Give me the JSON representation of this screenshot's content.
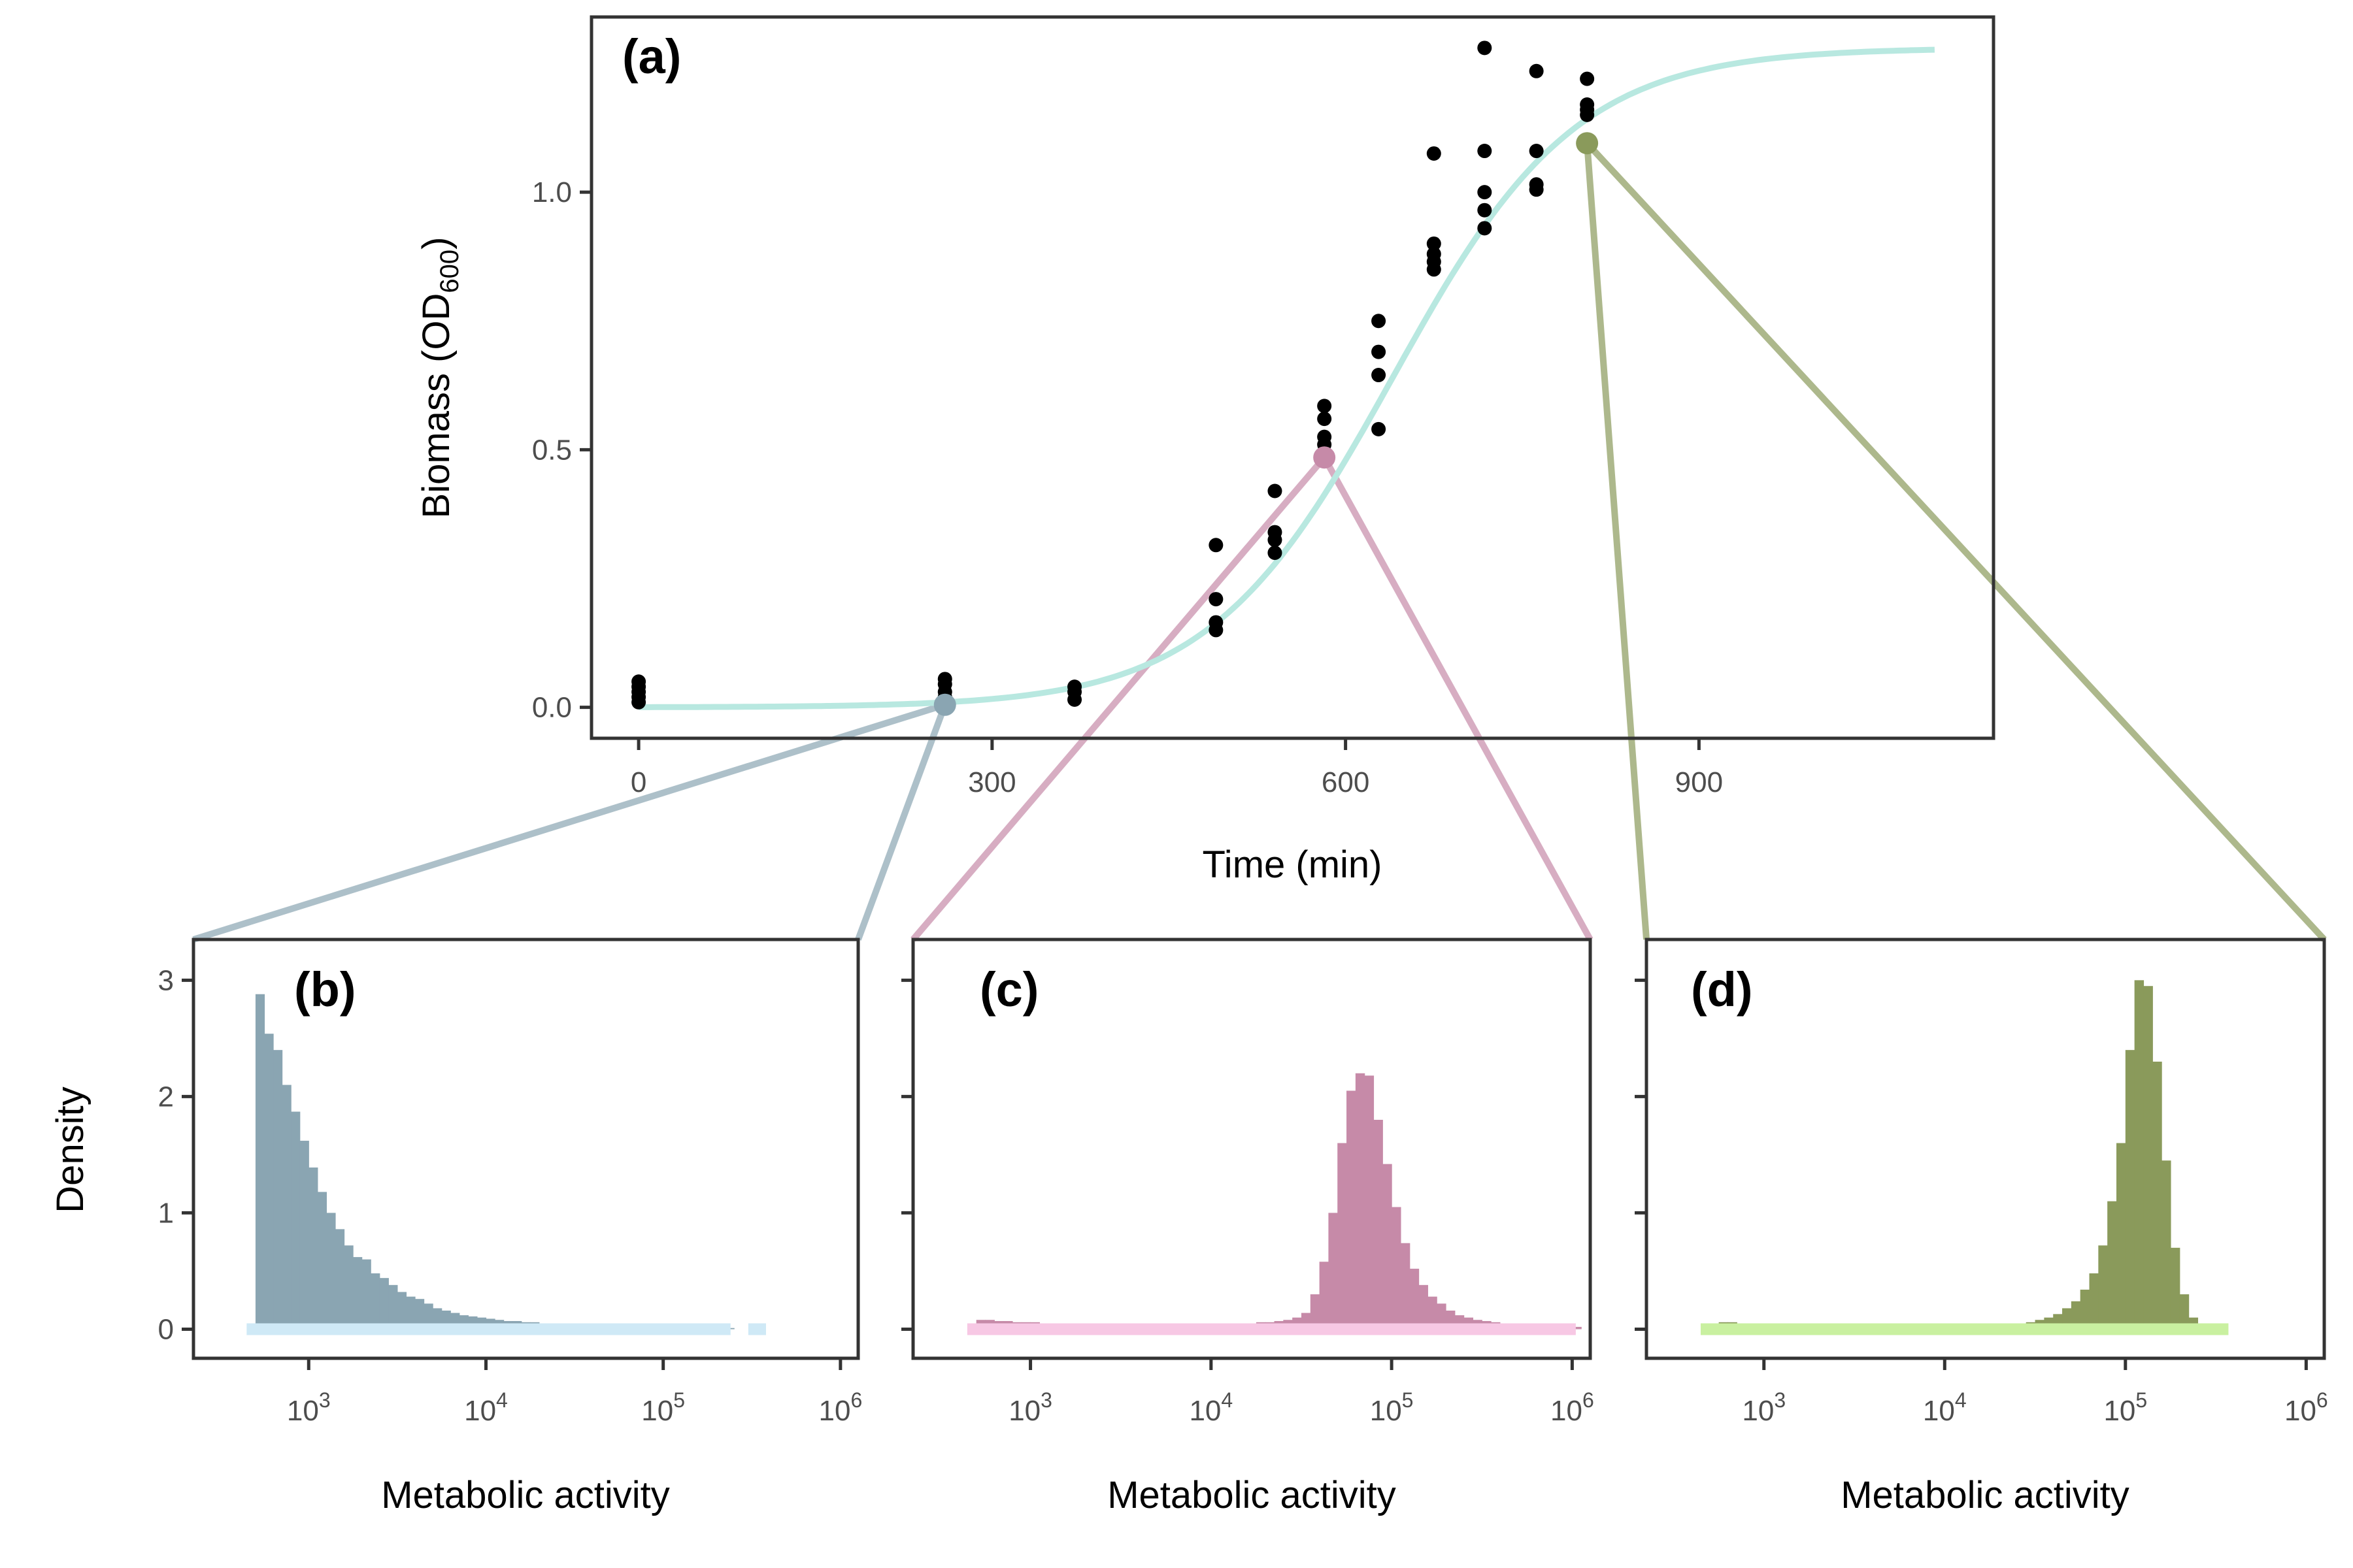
{
  "chart_data": [
    {
      "type": "scatter",
      "panel_label": "(a)",
      "xlabel": "Time (min)",
      "ylabel": "Biomass (OD",
      "ylabel_sub": "600",
      "ylabel_end": ")",
      "xlim": [
        -40,
        1150
      ],
      "ylim": [
        -0.06,
        1.34
      ],
      "xticks": [
        0,
        300,
        600,
        900
      ],
      "xtick_labels": [
        "0",
        "300",
        "600",
        "900"
      ],
      "yticks": [
        0.0,
        0.5,
        1.0
      ],
      "ytick_labels": [
        "0.0",
        "0.5",
        "1.0"
      ],
      "grid": false,
      "curve_color": "#b8e8e0",
      "curve": {
        "K": 1.28,
        "r": 0.0128,
        "t0": 640,
        "x_range": [
          0,
          1100
        ]
      },
      "points": [
        [
          0,
          0.01
        ],
        [
          0,
          0.02
        ],
        [
          0,
          0.03
        ],
        [
          0,
          0.04
        ],
        [
          0,
          0.05
        ],
        [
          260,
          0.02
        ],
        [
          260,
          0.03
        ],
        [
          260,
          0.045
        ],
        [
          260,
          0.055
        ],
        [
          370,
          0.015
        ],
        [
          370,
          0.03
        ],
        [
          370,
          0.04
        ],
        [
          490,
          0.15
        ],
        [
          490,
          0.165
        ],
        [
          490,
          0.21
        ],
        [
          490,
          0.315
        ],
        [
          540,
          0.3
        ],
        [
          540,
          0.325
        ],
        [
          540,
          0.34
        ],
        [
          540,
          0.42
        ],
        [
          582,
          0.51
        ],
        [
          582,
          0.525
        ],
        [
          582,
          0.56
        ],
        [
          582,
          0.585
        ],
        [
          628,
          0.54
        ],
        [
          628,
          0.645
        ],
        [
          628,
          0.69
        ],
        [
          628,
          0.75
        ],
        [
          675,
          0.85
        ],
        [
          675,
          0.865
        ],
        [
          675,
          0.88
        ],
        [
          675,
          0.9
        ],
        [
          675,
          1.075
        ],
        [
          718,
          0.93
        ],
        [
          718,
          0.965
        ],
        [
          718,
          1.0
        ],
        [
          718,
          1.08
        ],
        [
          718,
          1.28
        ],
        [
          762,
          1.005
        ],
        [
          762,
          1.015
        ],
        [
          762,
          1.08
        ],
        [
          762,
          1.235
        ],
        [
          805,
          1.15
        ],
        [
          805,
          1.16
        ],
        [
          805,
          1.17
        ],
        [
          805,
          1.22
        ]
      ],
      "highlights": [
        {
          "x": 260,
          "y": 0.005,
          "color": "#8aa5b2"
        },
        {
          "x": 582,
          "y": 0.485,
          "color": "#c68aa8"
        },
        {
          "x": 805,
          "y": 1.095,
          "color": "#8a9a5b"
        }
      ]
    },
    {
      "type": "histogram",
      "panel_label": "(b)",
      "xlabel": "Metabolic activity",
      "ylabel": "Density",
      "x_scale": "log10",
      "xlim_log10": [
        2.35,
        6.1
      ],
      "ylim": [
        -0.25,
        3.35
      ],
      "yticks": [
        0,
        1,
        2,
        3
      ],
      "ytick_labels": [
        "0",
        "1",
        "2",
        "3"
      ],
      "xticks_log10": [
        3,
        4,
        5,
        6
      ],
      "xtick_base": "10",
      "xtick_exponents": [
        "3",
        "4",
        "5",
        "6"
      ],
      "fill_color": "#8aa5b2",
      "rug_color": "#cfe9f6",
      "rug_range_log10": [
        2.65,
        5.38
      ],
      "rug_extra_log10": [
        5.48,
        5.58
      ],
      "bin_start_log10": 2.7,
      "bin_width_log10": 0.05,
      "density": [
        2.88,
        2.54,
        2.4,
        2.1,
        1.87,
        1.62,
        1.39,
        1.18,
        1.0,
        0.86,
        0.72,
        0.62,
        0.6,
        0.48,
        0.44,
        0.38,
        0.32,
        0.28,
        0.26,
        0.22,
        0.18,
        0.16,
        0.14,
        0.12,
        0.11,
        0.1,
        0.09,
        0.08,
        0.07,
        0.07,
        0.06,
        0.06,
        0.05,
        0.05,
        0.05,
        0.04,
        0.04,
        0.04,
        0.03,
        0.03,
        0.03,
        0.03,
        0.03,
        0.02,
        0.02,
        0.02,
        0.02,
        0.02,
        0.02,
        0.02,
        0.01,
        0.01,
        0.01,
        0.01
      ]
    },
    {
      "type": "histogram",
      "panel_label": "(c)",
      "xlabel": "Metabolic activity",
      "ylabel": "",
      "x_scale": "log10",
      "xlim_log10": [
        2.35,
        6.1
      ],
      "ylim": [
        -0.25,
        3.35
      ],
      "yticks": [
        0,
        1,
        2,
        3
      ],
      "ytick_labels": [
        "",
        "",
        "",
        ""
      ],
      "xticks_log10": [
        3,
        4,
        5,
        6
      ],
      "xtick_base": "10",
      "xtick_exponents": [
        "3",
        "4",
        "5",
        "6"
      ],
      "fill_color": "#c68aa8",
      "rug_color": "#f7c8e4",
      "rug_range_log10": [
        2.65,
        6.02
      ],
      "bin_start_log10": 2.7,
      "bin_width_log10": 0.05,
      "density": [
        0.08,
        0.08,
        0.07,
        0.07,
        0.06,
        0.06,
        0.06,
        0.05,
        0.05,
        0.05,
        0.05,
        0.04,
        0.04,
        0.04,
        0.04,
        0.04,
        0.04,
        0.04,
        0.04,
        0.04,
        0.04,
        0.04,
        0.04,
        0.04,
        0.04,
        0.04,
        0.04,
        0.04,
        0.05,
        0.05,
        0.05,
        0.06,
        0.06,
        0.07,
        0.08,
        0.1,
        0.14,
        0.3,
        0.58,
        1.0,
        1.6,
        2.05,
        2.2,
        2.18,
        1.8,
        1.42,
        1.05,
        0.74,
        0.52,
        0.38,
        0.28,
        0.22,
        0.16,
        0.12,
        0.1,
        0.08,
        0.07,
        0.06,
        0.05,
        0.05,
        0.04,
        0.04,
        0.04,
        0.03,
        0.03,
        0.03,
        0.02
      ]
    },
    {
      "type": "histogram",
      "panel_label": "(d)",
      "xlabel": "Metabolic activity",
      "ylabel": "",
      "x_scale": "log10",
      "xlim_log10": [
        2.35,
        6.1
      ],
      "ylim": [
        -0.25,
        3.35
      ],
      "yticks": [
        0,
        1,
        2,
        3
      ],
      "ytick_labels": [
        "",
        "",
        "",
        ""
      ],
      "xticks_log10": [
        3,
        4,
        5,
        6
      ],
      "xtick_base": "10",
      "xtick_exponents": [
        "3",
        "4",
        "5",
        "6"
      ],
      "fill_color": "#8a9a5b",
      "rug_color": "#c9f0a0",
      "rug_range_log10": [
        2.65,
        5.57
      ],
      "bin_start_log10": 2.7,
      "bin_width_log10": 0.05,
      "density": [
        0.05,
        0.06,
        0.06,
        0.05,
        0.05,
        0.04,
        0.04,
        0.03,
        0.03,
        0.03,
        0.03,
        0.02,
        0.02,
        0.02,
        0.02,
        0.02,
        0.02,
        0.02,
        0.02,
        0.02,
        0.02,
        0.02,
        0.02,
        0.02,
        0.02,
        0.02,
        0.02,
        0.02,
        0.02,
        0.02,
        0.02,
        0.03,
        0.03,
        0.04,
        0.05,
        0.06,
        0.08,
        0.1,
        0.13,
        0.18,
        0.24,
        0.34,
        0.48,
        0.72,
        1.1,
        1.6,
        2.4,
        3.0,
        2.95,
        2.3,
        1.45,
        0.7,
        0.3,
        0.1,
        0.04
      ]
    }
  ]
}
